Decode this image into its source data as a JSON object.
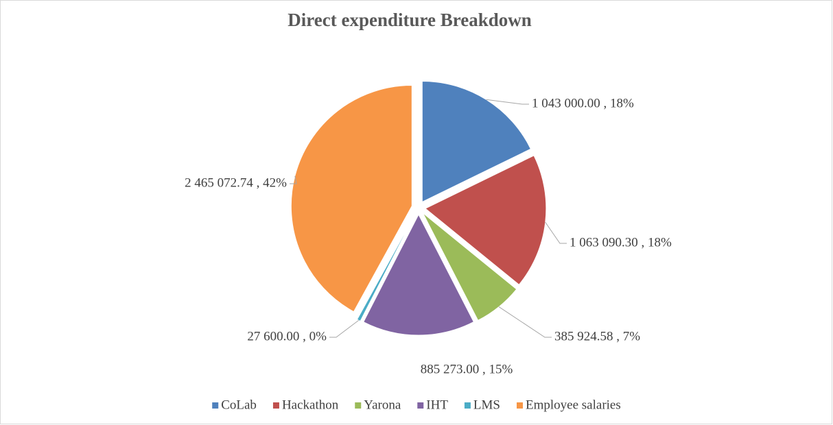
{
  "chart_data": {
    "type": "pie",
    "title": "Direct expenditure Breakdown",
    "categories": [
      "CoLab",
      "Hackathon",
      "Yarona",
      "IHT",
      "LMS",
      "Employee salaries"
    ],
    "values": [
      1043000,
      1063090.3,
      385924.58,
      885273,
      27600,
      2465072.74
    ],
    "value_labels": [
      "1 043 000.00 , 18%",
      "1 063 090.30 , 18%",
      "385 924.58 , 7%",
      "885 273.00 , 15%",
      "27 600.00 , 0%",
      "2 465 072.74 , 42%"
    ],
    "colors": [
      "#4f81bd",
      "#c0504d",
      "#9bbb59",
      "#8064a2",
      "#4bacc6",
      "#f79646"
    ],
    "legend": "bottom"
  }
}
